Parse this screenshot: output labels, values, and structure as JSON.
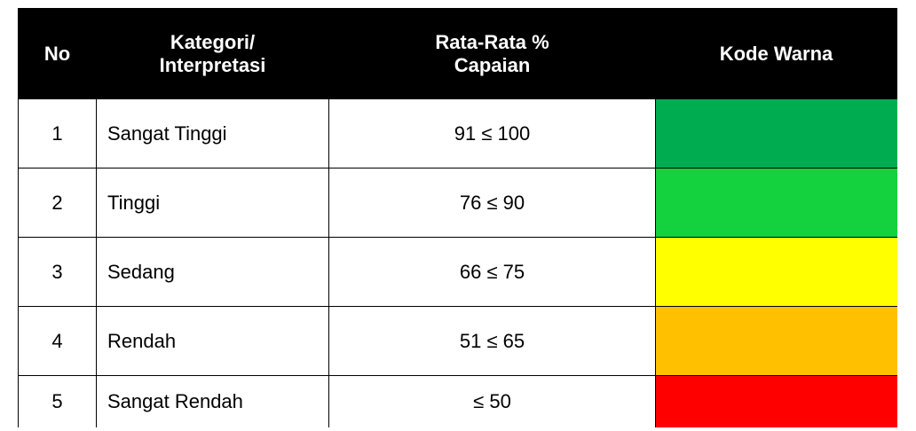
{
  "table": {
    "header": [
      "No",
      "Kategori/\nInterpretasi",
      "Rata-Rata %\nCapaian",
      "Kode Warna"
    ],
    "rows": [
      {
        "no": "1",
        "category": "Sangat Tinggi",
        "range": "91 ≤ 100",
        "color": "#00ac50"
      },
      {
        "no": "2",
        "category": "Tinggi",
        "range": "76 ≤ 90",
        "color": "#13d23e"
      },
      {
        "no": "3",
        "category": "Sedang",
        "range": "66 ≤ 75",
        "color": "#ffff00"
      },
      {
        "no": "4",
        "category": "Rendah",
        "range": "51 ≤ 65",
        "color": "#ffc000"
      },
      {
        "no": "5",
        "category": "Sangat Rendah",
        "range": "≤ 50",
        "color": "#ff0000"
      }
    ]
  }
}
